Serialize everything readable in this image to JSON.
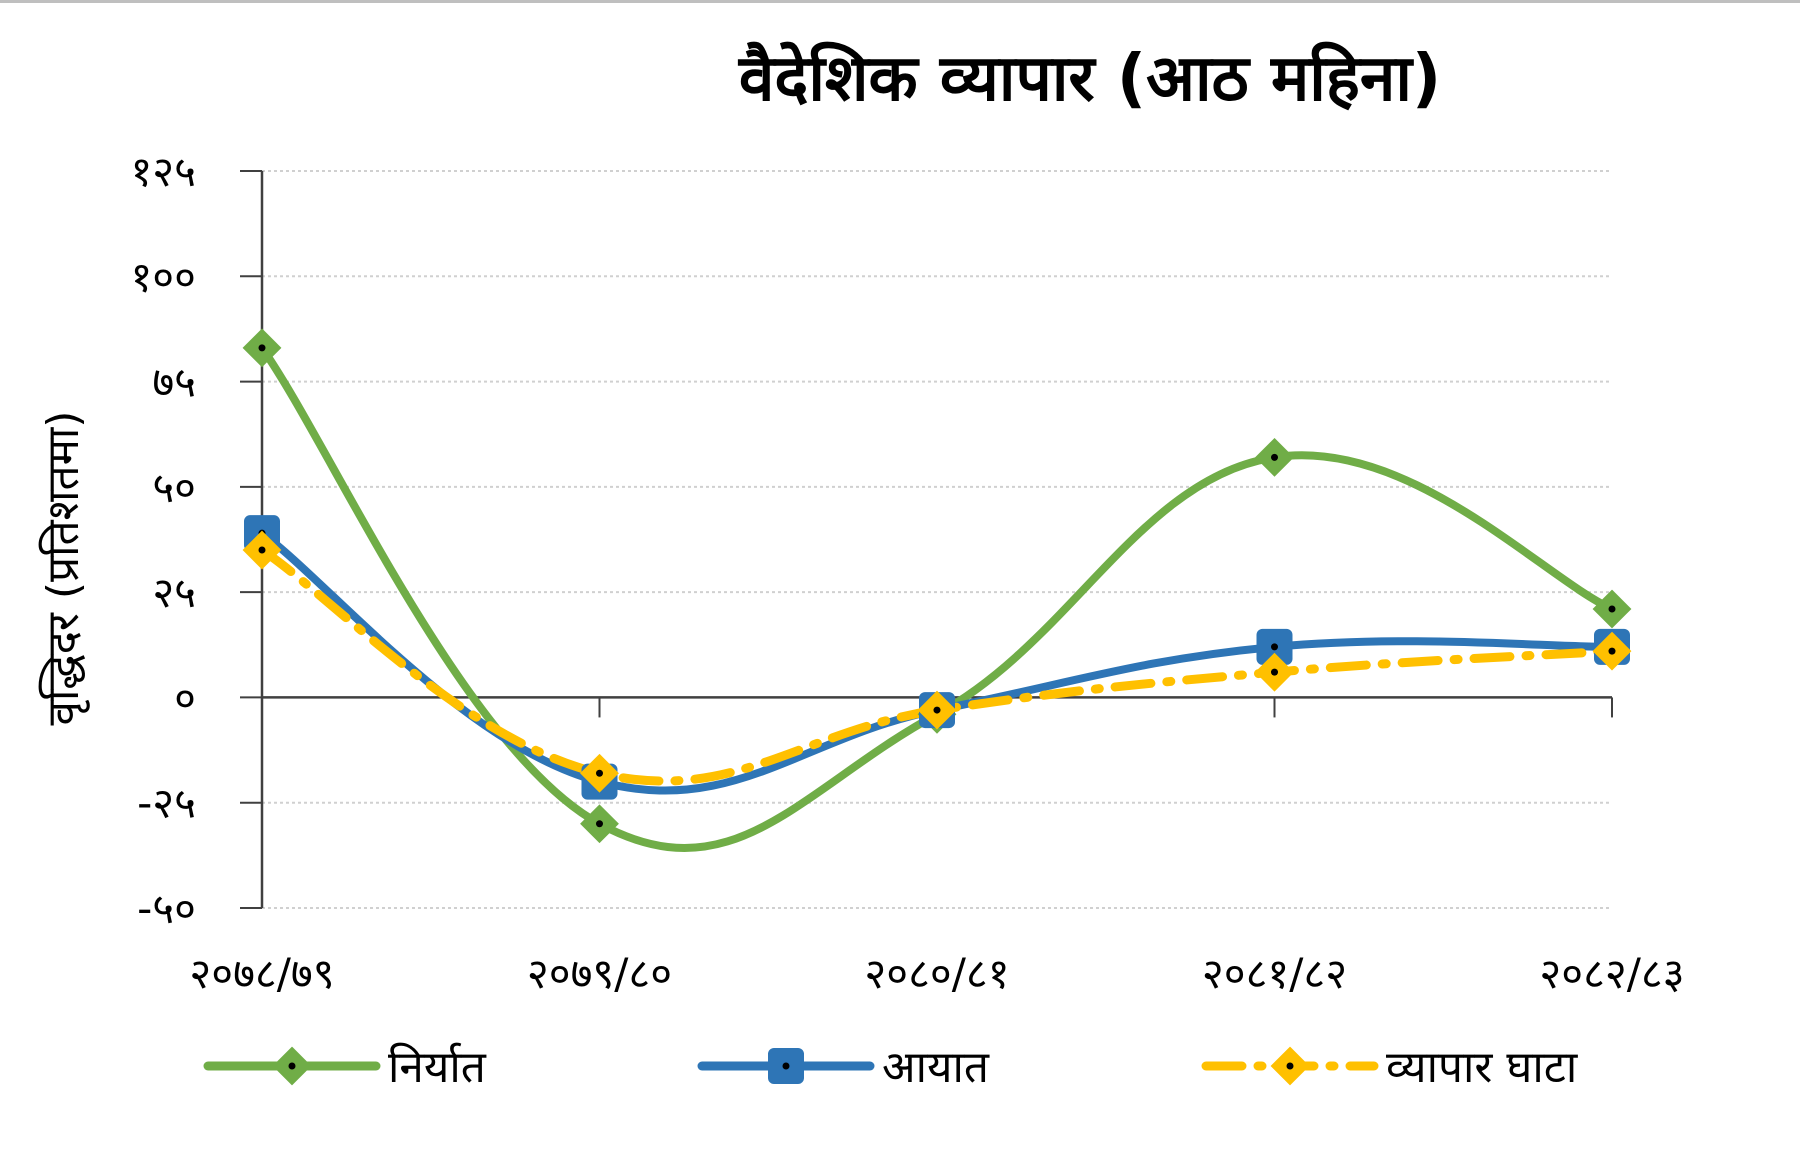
{
  "chart_data": {
    "type": "line",
    "title": "वैदेशिक व्यापार (आठ महिना)",
    "xlabel": "",
    "ylabel": "वृद्धिदर (प्रतिशतमा)",
    "categories": [
      "२०७८/७९",
      "२०७९/८०",
      "२०८०/८१",
      "२०८१/८२",
      "२०८२/८३"
    ],
    "ylim": [
      -50,
      125
    ],
    "yticks": [
      -50,
      -25,
      0,
      25,
      50,
      75,
      100,
      125
    ],
    "ytick_labels": [
      "-५०",
      "-२५",
      "०",
      "२५",
      "५०",
      "७५",
      "१००",
      "१२५"
    ],
    "grid": true,
    "legend_position": "bottom",
    "smooth": true,
    "series": [
      {
        "name": "निर्यात",
        "values": [
          83,
          -30,
          -4,
          57,
          21
        ],
        "color": "#70ad47",
        "dash": "solid",
        "marker": "diamond"
      },
      {
        "name": "आयात",
        "values": [
          39,
          -20,
          -3,
          12,
          12
        ],
        "color": "#2e75b6",
        "dash": "solid",
        "marker": "square"
      },
      {
        "name": "व्यापार घाटा",
        "values": [
          35,
          -18,
          -3,
          6,
          11
        ],
        "color": "#ffc000",
        "dash": "dashdot",
        "marker": "diamond"
      }
    ]
  }
}
